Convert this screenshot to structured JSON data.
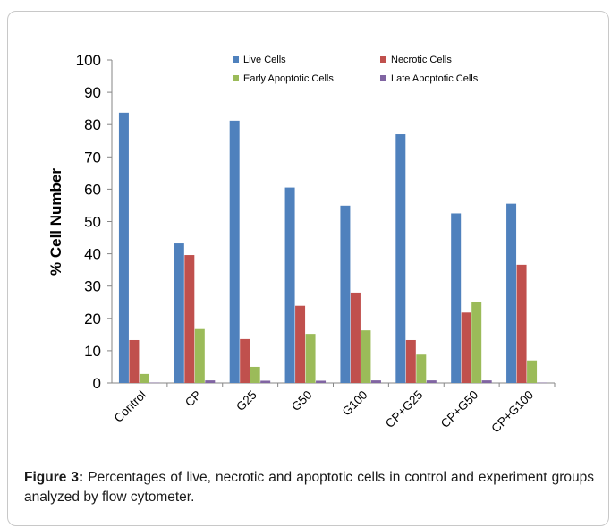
{
  "chart_data": {
    "type": "bar",
    "ylabel": "% Cell Number",
    "xlabel": "",
    "ylim": [
      0,
      100
    ],
    "yticks": [
      0,
      10,
      20,
      30,
      40,
      50,
      60,
      70,
      80,
      90,
      100
    ],
    "grid": false,
    "legend_position": "top",
    "categories": [
      "Control",
      "CP",
      "G25",
      "G50",
      "G100",
      "CP+G25",
      "CP+G50",
      "CP+G100"
    ],
    "series": [
      {
        "name": "Live Cells",
        "color": "#4f81bd",
        "values": [
          83.7,
          43.2,
          81.2,
          60.5,
          54.9,
          77.0,
          52.5,
          55.5
        ]
      },
      {
        "name": "Necrotic Cells",
        "color": "#c0504d",
        "values": [
          13.3,
          39.6,
          13.6,
          23.9,
          28.0,
          13.3,
          21.8,
          36.6
        ]
      },
      {
        "name": "Early Apoptotic Cells",
        "color": "#9bbb59",
        "values": [
          2.8,
          16.7,
          5.0,
          15.2,
          16.3,
          8.8,
          25.2,
          7.0
        ]
      },
      {
        "name": "Late Apoptotic Cells",
        "color": "#8064a2",
        "values": [
          0.1,
          0.8,
          0.7,
          0.7,
          0.8,
          0.8,
          0.8,
          0.1
        ]
      }
    ]
  },
  "caption": {
    "label": "Figure 3:",
    "text": " Percentages of live, necrotic and apoptotic cells in control and experiment groups analyzed by flow cytometer."
  }
}
